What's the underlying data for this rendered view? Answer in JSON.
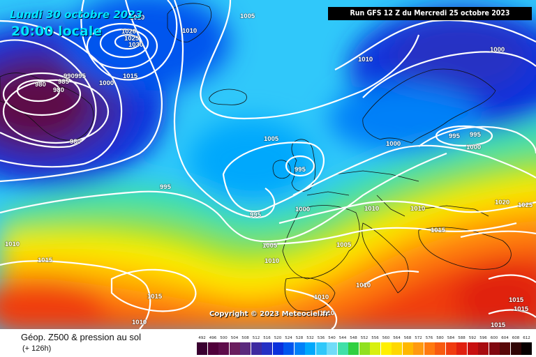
{
  "header": {
    "date": "Lundi 30 octobre 2023",
    "local_time": "20:00 locale",
    "run_info": "Run GFS 12 Z du Mercredi 25 octobre 2023"
  },
  "copyright": "Copyright © 2023 Meteociel.fr",
  "footer": {
    "title": "Géop. Z500 & pression au sol",
    "subtitle": "(+ 126h)"
  },
  "legend": {
    "values": [
      "492",
      "496",
      "500",
      "504",
      "508",
      "512",
      "516",
      "520",
      "524",
      "528",
      "532",
      "536",
      "540",
      "544",
      "548",
      "552",
      "556",
      "560",
      "564",
      "568",
      "572",
      "576",
      "580",
      "584",
      "588",
      "592",
      "596",
      "600",
      "604",
      "608",
      "612"
    ],
    "colors": [
      "#3a0030",
      "#50003a",
      "#5d0c4a",
      "#6a1e5e",
      "#5b2a7d",
      "#3e2aa0",
      "#2530c4",
      "#0a30dc",
      "#0055ee",
      "#0080f8",
      "#00a8fc",
      "#30c8fa",
      "#70dcf8",
      "#40e0a8",
      "#30d040",
      "#90e020",
      "#d8f010",
      "#fff000",
      "#ffd800",
      "#ffb800",
      "#ff9a10",
      "#ff7a10",
      "#f85a10",
      "#f03c10",
      "#e02010",
      "#c81010",
      "#a80c10",
      "#800810",
      "#580808",
      "#300404",
      "#080000"
    ]
  },
  "isobars": [
    {
      "t": "1010"
    },
    {
      "t": "1005"
    },
    {
      "t": "1010"
    },
    {
      "t": "1020"
    },
    {
      "t": "1025"
    },
    {
      "t": "1030"
    },
    {
      "t": "1015"
    },
    {
      "t": "1000"
    },
    {
      "t": "990"
    },
    {
      "t": "995"
    },
    {
      "t": "980"
    },
    {
      "t": "985"
    },
    {
      "t": "980"
    },
    {
      "t": "980"
    },
    {
      "t": "1010"
    },
    {
      "t": "1000"
    },
    {
      "t": "1005"
    },
    {
      "t": "995"
    },
    {
      "t": "995"
    },
    {
      "t": "1000"
    },
    {
      "t": "995"
    },
    {
      "t": "995"
    },
    {
      "t": "1000"
    },
    {
      "t": "995"
    },
    {
      "t": "1000"
    },
    {
      "t": "1010"
    },
    {
      "t": "1010"
    },
    {
      "t": "1020"
    },
    {
      "t": "1025"
    },
    {
      "t": "1015"
    },
    {
      "t": "1010"
    },
    {
      "t": "1015"
    },
    {
      "t": "1005"
    },
    {
      "t": "1005"
    },
    {
      "t": "1010"
    },
    {
      "t": "1015"
    },
    {
      "t": "1010"
    },
    {
      "t": "1010"
    },
    {
      "t": "1010"
    },
    {
      "t": "1010"
    },
    {
      "t": "1015"
    },
    {
      "t": "1015"
    },
    {
      "t": "1015"
    }
  ]
}
